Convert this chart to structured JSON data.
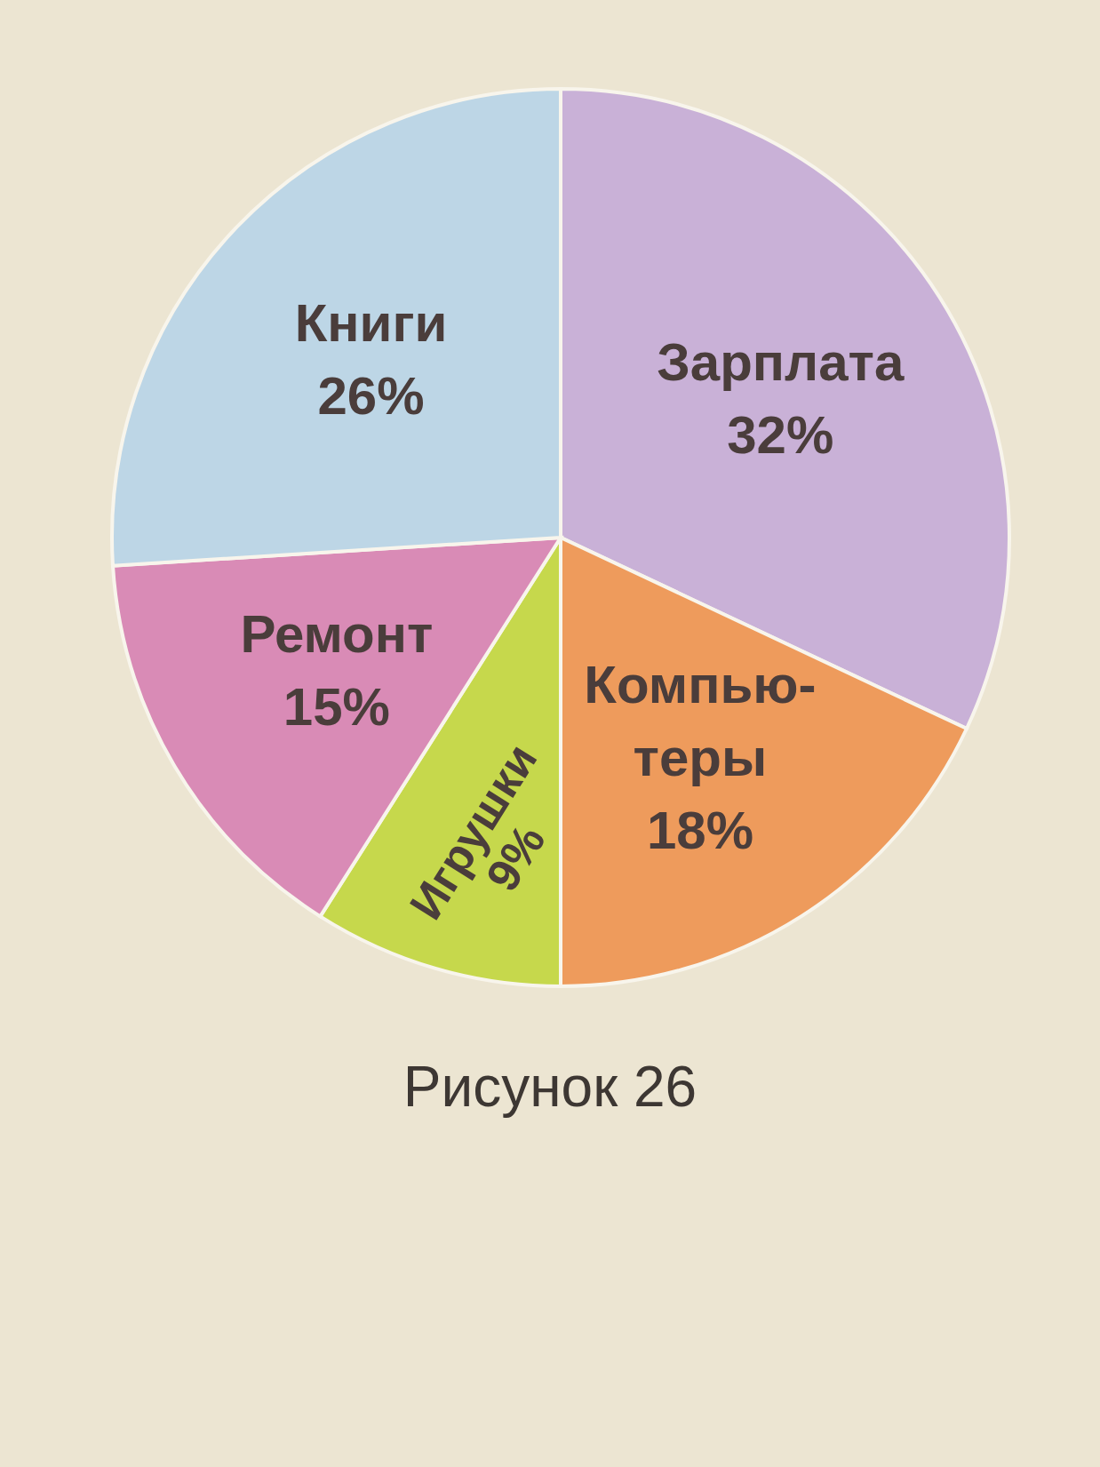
{
  "chart_data": {
    "type": "pie",
    "categories": [
      "Зарплата",
      "Компью-\nтеры",
      "Игрушки",
      "Ремонт",
      "Книги"
    ],
    "values": [
      32,
      18,
      9,
      15,
      26
    ],
    "colors": [
      "#c9b1d7",
      "#ee9b5c",
      "#c6d84c",
      "#d98bb6",
      "#bdd6e6"
    ],
    "value_labels": [
      "32%",
      "18%",
      "9%",
      "15%",
      "26%"
    ],
    "annotations": [
      "Рисунок 26"
    ]
  }
}
